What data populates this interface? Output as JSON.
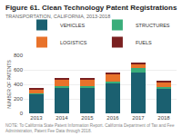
{
  "chart_data": {
    "type": "bar",
    "title": "Figure 61. Clean Technology Patent Registrations",
    "subtitle": "TRANSPORTATION, CALIFORNIA, 2013-2018",
    "footnote": "NOTE: To California State Patent Information Report. California Department of Tax and Fee Administration, Patent Fee Data through 2018.",
    "ylabel": "NUMBER OF PATENTS",
    "categories": [
      "2013",
      "2014",
      "2015",
      "2016",
      "2017",
      "2018"
    ],
    "series": [
      {
        "name": "VEHICLES",
        "color": "#1b6070",
        "values": [
          265,
          355,
          355,
          415,
          565,
          340
        ]
      },
      {
        "name": "STRUCTURES",
        "color": "#3aad7a",
        "values": [
          15,
          20,
          20,
          25,
          55,
          20
        ]
      },
      {
        "name": "LOGISTICS",
        "color": "#e8722a",
        "values": [
          50,
          90,
          90,
          100,
          55,
          65
        ]
      },
      {
        "name": "FUELS",
        "color": "#7a2020",
        "values": [
          25,
          25,
          20,
          20,
          30,
          25
        ]
      }
    ],
    "ylim": [
      0,
      800
    ],
    "yticks": [
      0,
      200,
      400,
      600,
      800
    ],
    "grid": true,
    "stacked": true,
    "legend": "upper left"
  }
}
